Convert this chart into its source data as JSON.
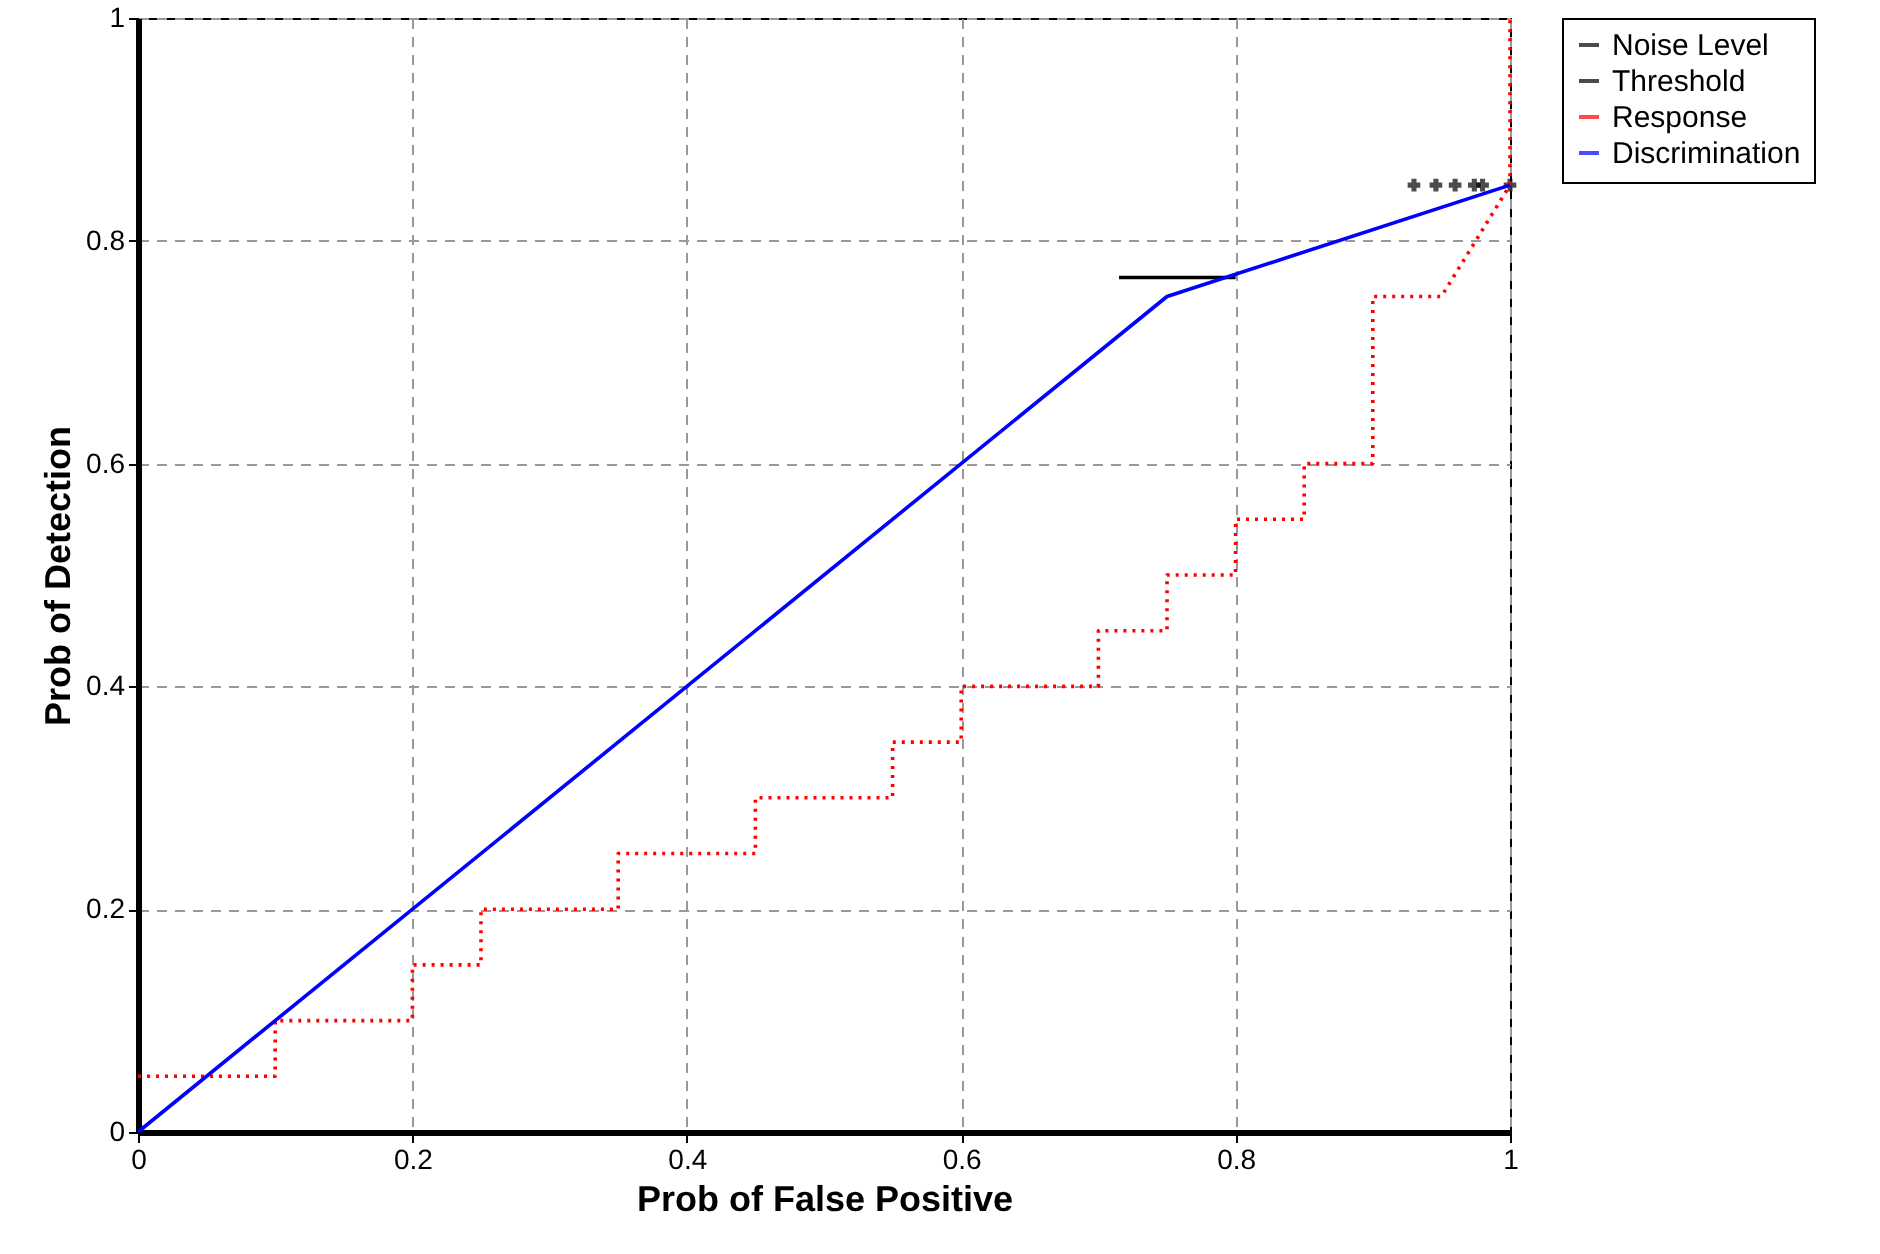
{
  "chart_data": {
    "type": "line",
    "xlabel": "Prob of False Positive",
    "ylabel": "Prob of Detection",
    "xlim": [
      0,
      1
    ],
    "ylim": [
      0,
      1
    ],
    "xticks": [
      0,
      0.2,
      0.4,
      0.6,
      0.8,
      1
    ],
    "yticks": [
      0,
      0.2,
      0.4,
      0.6,
      0.8,
      1
    ],
    "grid": true,
    "legend": "top right",
    "series": [
      {
        "name": "Noise Level",
        "type": "scatter",
        "marker": "cross",
        "color": "#000000",
        "x": [
          0.93,
          0.946,
          0.96,
          0.974,
          0.98,
          1
        ],
        "values": [
          0.85,
          0.85,
          0.85,
          0.85,
          0.85,
          0.85
        ]
      },
      {
        "name": "Threshold",
        "type": "line",
        "color": "#000000",
        "line_style": "solid",
        "x": [
          0.715,
          0.8
        ],
        "values": [
          0.767,
          0.767
        ]
      },
      {
        "name": "Response",
        "type": "line",
        "color": "#ff0000",
        "line_style": "dotted",
        "x": [
          0,
          0.1,
          0.1,
          0.2,
          0.2,
          0.25,
          0.25,
          0.35,
          0.35,
          0.45,
          0.45,
          0.55,
          0.55,
          0.6,
          0.6,
          0.7,
          0.7,
          0.75,
          0.75,
          0.8,
          0.8,
          0.85,
          0.85,
          0.9,
          0.9,
          0.95,
          1,
          1
        ],
        "values": [
          0.05,
          0.05,
          0.1,
          0.1,
          0.15,
          0.15,
          0.2,
          0.2,
          0.25,
          0.25,
          0.3,
          0.3,
          0.35,
          0.35,
          0.4,
          0.4,
          0.45,
          0.45,
          0.5,
          0.5,
          0.55,
          0.55,
          0.6,
          0.6,
          0.75,
          0.75,
          0.85,
          1
        ]
      },
      {
        "name": "Discrimination",
        "type": "line",
        "color": "#0000ff",
        "line_style": "solid",
        "x": [
          0,
          0.75,
          1
        ],
        "values": [
          0,
          0.75,
          0.85
        ]
      }
    ]
  }
}
